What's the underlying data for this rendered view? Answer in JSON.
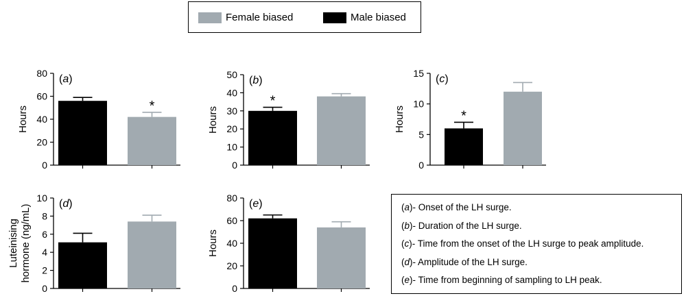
{
  "colors": {
    "female": "#a1aab0",
    "male": "#000000"
  },
  "legend": {
    "items": [
      {
        "label": "Male biased",
        "color": "#000000"
      },
      {
        "label": "Female biased",
        "color": "#a1aab0"
      }
    ]
  },
  "notes": [
    {
      "tag": "a",
      "text": "- Onset of the LH surge."
    },
    {
      "tag": "b",
      "text": "- Duration of the LH surge."
    },
    {
      "tag": "c",
      "text": "- Time from the onset of the LH surge to peak amplitude."
    },
    {
      "tag": "d",
      "text": "- Amplitude of the LH surge."
    },
    {
      "tag": "e",
      "text": "- Time from beginning of sampling to LH peak."
    }
  ],
  "chart_data": [
    {
      "type": "bar",
      "panel": "(a)",
      "ylabel": "Hours",
      "ylim": [
        0,
        80
      ],
      "ticks": [
        0,
        20,
        40,
        60,
        80
      ],
      "categories": [
        "Male biased",
        "Female biased"
      ],
      "values": [
        56,
        42
      ],
      "errors": [
        3,
        4
      ],
      "significance": [
        "",
        "*"
      ]
    },
    {
      "type": "bar",
      "panel": "(b)",
      "ylabel": "Hours",
      "ylim": [
        0,
        50
      ],
      "ticks": [
        0,
        10,
        20,
        30,
        40,
        50
      ],
      "categories": [
        "Male biased",
        "Female biased"
      ],
      "values": [
        30,
        38
      ],
      "errors": [
        2,
        1.5
      ],
      "significance": [
        "*",
        ""
      ]
    },
    {
      "type": "bar",
      "panel": "(c)",
      "ylabel": "Hours",
      "ylim": [
        0,
        15
      ],
      "ticks": [
        0,
        5,
        10,
        15
      ],
      "categories": [
        "Male biased",
        "Female biased"
      ],
      "values": [
        6,
        12
      ],
      "errors": [
        1,
        1.5
      ],
      "significance": [
        "*",
        ""
      ]
    },
    {
      "type": "bar",
      "panel": "(d)",
      "ylabel": [
        "Luteinising",
        "hormone (ng/mL)"
      ],
      "ylim": [
        0,
        10
      ],
      "ticks": [
        0,
        2,
        4,
        6,
        8,
        10
      ],
      "categories": [
        "Male biased",
        "Female biased"
      ],
      "values": [
        5.1,
        7.4
      ],
      "errors": [
        1.0,
        0.7
      ],
      "significance": [
        "",
        ""
      ]
    },
    {
      "type": "bar",
      "panel": "(e)",
      "ylabel": "Hours",
      "ylim": [
        0,
        80
      ],
      "ticks": [
        0,
        20,
        40,
        60,
        80
      ],
      "categories": [
        "Male biased",
        "Female biased"
      ],
      "values": [
        62,
        54
      ],
      "errors": [
        3,
        5
      ],
      "significance": [
        "",
        ""
      ]
    }
  ]
}
